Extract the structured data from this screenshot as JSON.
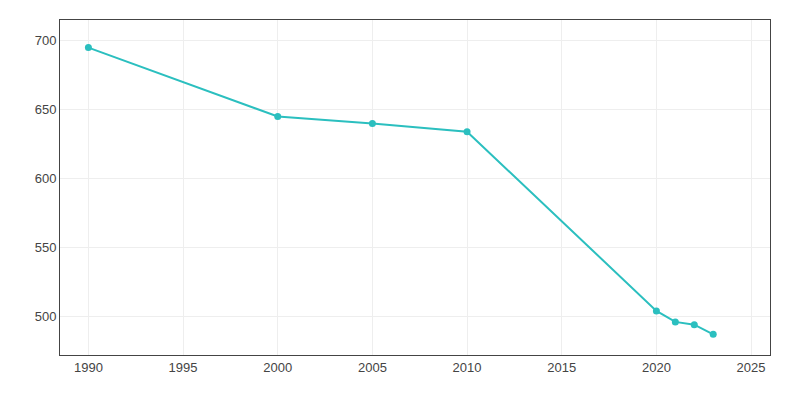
{
  "chart_data": {
    "type": "line",
    "x": [
      1990,
      2000,
      2005,
      2010,
      2020,
      2021,
      2022,
      2023
    ],
    "values": [
      695,
      645,
      640,
      634,
      504,
      496,
      494,
      487
    ],
    "color": "#2bbfbf",
    "marker": "circle",
    "xlim": [
      1988.5,
      2026
    ],
    "ylim": [
      472,
      715
    ],
    "xticks": [
      1990,
      1995,
      2000,
      2005,
      2010,
      2015,
      2020,
      2025
    ],
    "yticks": [
      500,
      550,
      600,
      650,
      700
    ],
    "grid": true
  }
}
